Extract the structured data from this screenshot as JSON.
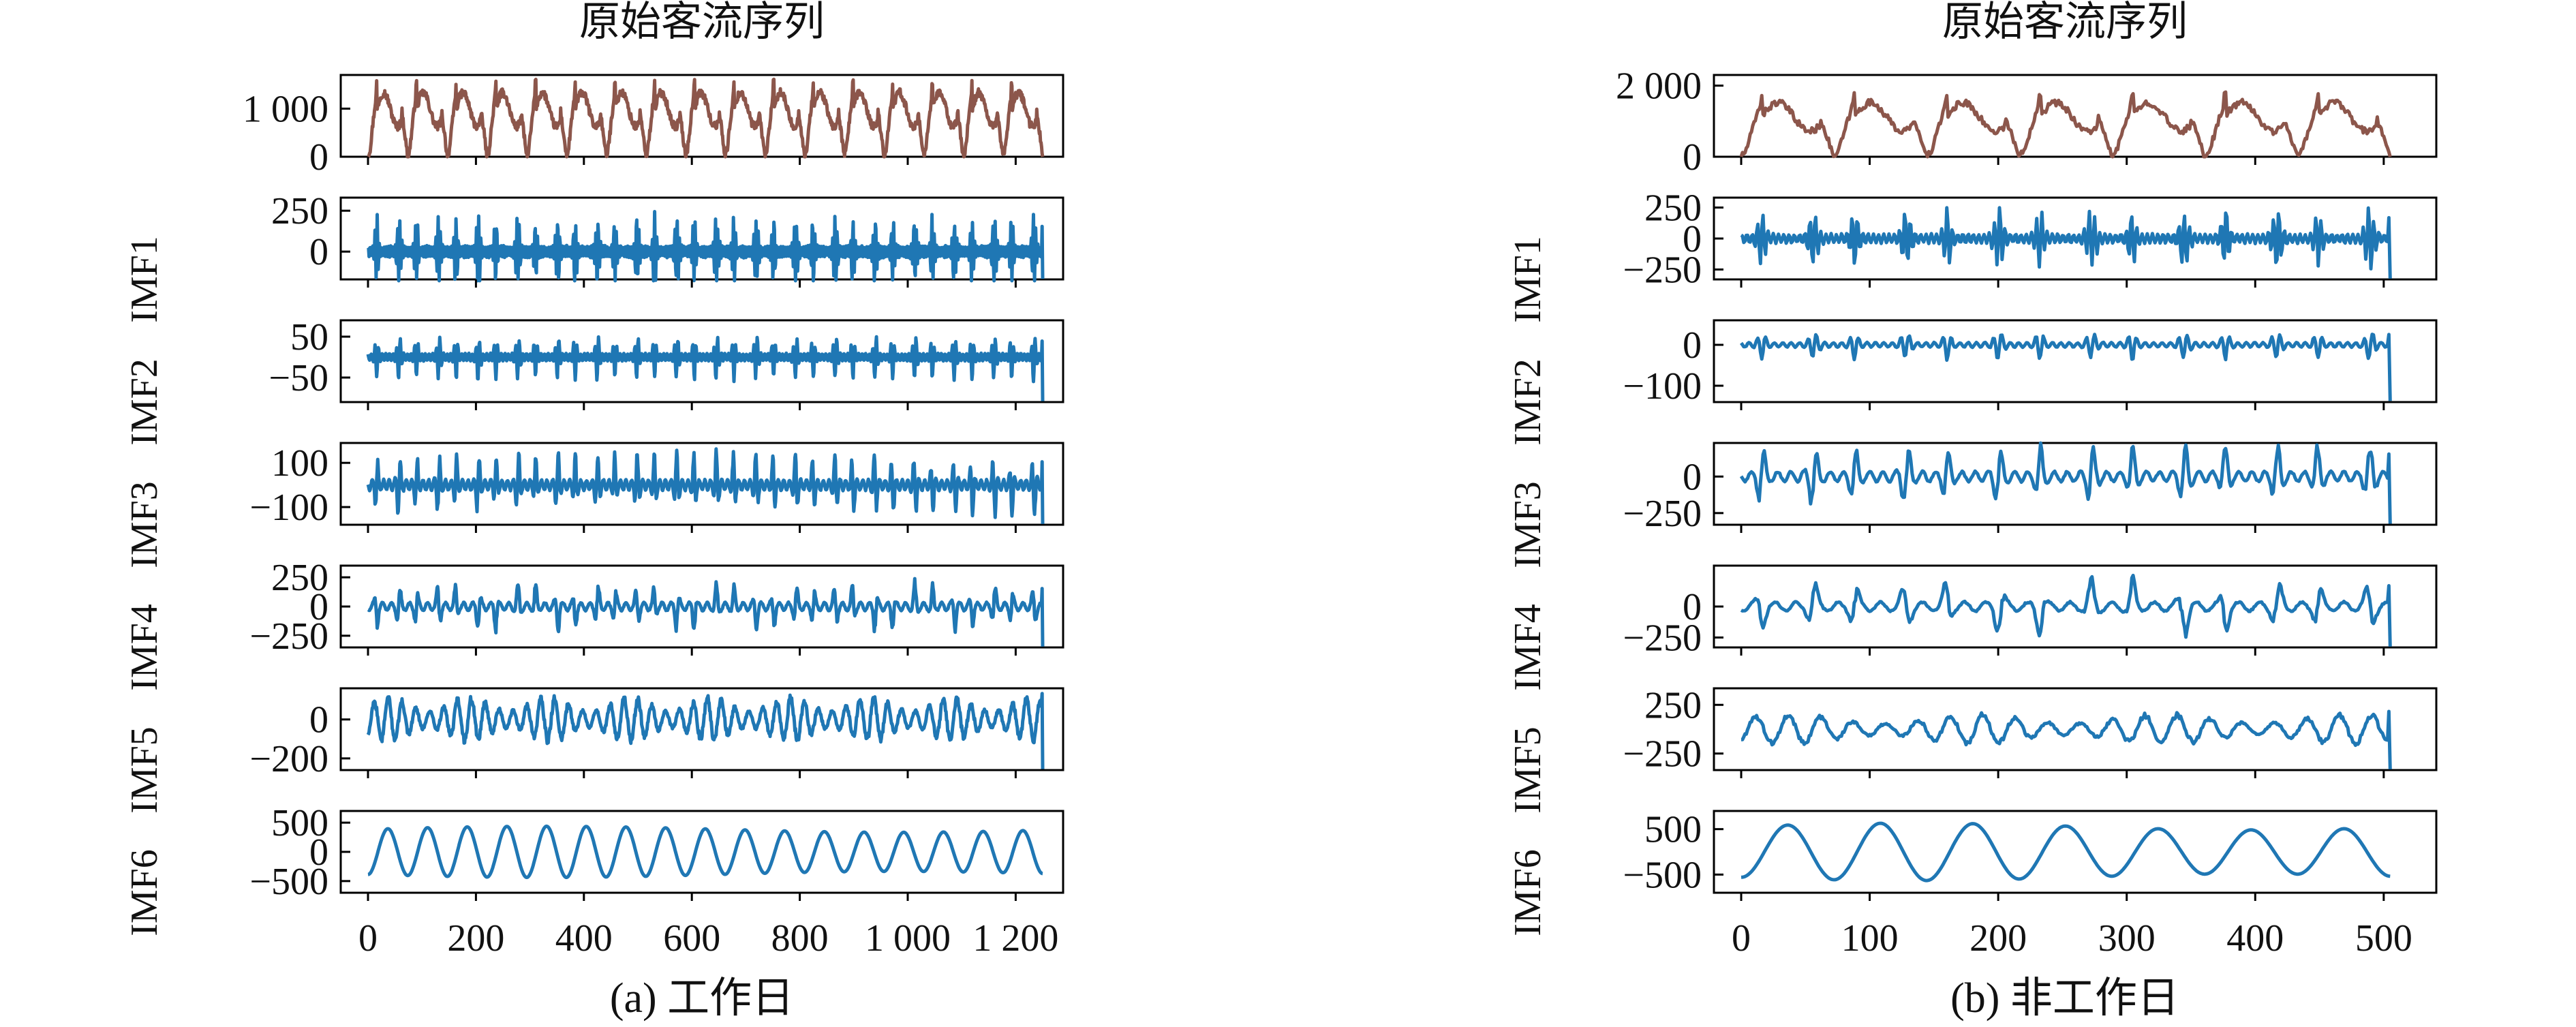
{
  "figure": {
    "colors": {
      "original": "#8c564b",
      "imf": "#1f77b4"
    }
  },
  "chart_data": [
    {
      "type": "line",
      "caption": "(a) 工作日",
      "title": "原始客流序列",
      "xlim": [
        0,
        1250
      ],
      "x_ticks": [
        "0",
        "200",
        "400",
        "600",
        "800",
        "1 000",
        "1 200"
      ],
      "grid": false,
      "cycles": 17,
      "length": 1250,
      "series": [
        {
          "name": "原始客流序列",
          "ylabel": "",
          "color": "#8c564b",
          "ylim": [
            0,
            1700
          ],
          "yticks": [
            [
              "1 000",
              1000
            ],
            [
              "0",
              0
            ]
          ],
          "peak": 1400
        },
        {
          "name": "IMF1",
          "ylabel": "IMF1",
          "color": "#1f77b4",
          "ylim": [
            -170,
            330
          ],
          "yticks": [
            [
              "250",
              250
            ],
            [
              "0",
              0
            ]
          ],
          "amp": 110
        },
        {
          "name": "IMF2",
          "ylabel": "IMF2",
          "color": "#1f77b4",
          "ylim": [
            -110,
            90
          ],
          "yticks": [
            [
              "50",
              50
            ],
            [
              "−50",
              -50
            ]
          ],
          "amp": 28
        },
        {
          "name": "IMF3",
          "ylabel": "IMF3",
          "color": "#1f77b4",
          "ylim": [
            -180,
            190
          ],
          "yticks": [
            [
              "100",
              100
            ],
            [
              "−100",
              -100
            ]
          ],
          "amp": 75
        },
        {
          "name": "IMF4",
          "ylabel": "IMF4",
          "color": "#1f77b4",
          "ylim": [
            -350,
            350
          ],
          "yticks": [
            [
              "250",
              250
            ],
            [
              "0",
              0
            ],
            [
              "−250",
              -250
            ]
          ],
          "amp": 110
        },
        {
          "name": "IMF5",
          "ylabel": "IMF5",
          "color": "#1f77b4",
          "ylim": [
            -260,
            160
          ],
          "yticks": [
            [
              "0",
              0
            ],
            [
              "−200",
              -200
            ]
          ],
          "amp": 95
        },
        {
          "name": "IMF6",
          "ylabel": "IMF6",
          "color": "#1f77b4",
          "ylim": [
            -700,
            700
          ],
          "yticks": [
            [
              "500",
              500
            ],
            [
              "0",
              0
            ],
            [
              "−500",
              -500
            ]
          ],
          "amp": 430
        }
      ]
    },
    {
      "type": "line",
      "caption": "(b) 非工作日",
      "title": "原始客流序列",
      "xlim": [
        0,
        525
      ],
      "x_ticks": [
        "0",
        "100",
        "200",
        "300",
        "400",
        "500"
      ],
      "grid": false,
      "cycles": 7,
      "length": 505,
      "series": [
        {
          "name": "原始客流序列",
          "ylabel": "",
          "color": "#8c564b",
          "ylim": [
            0,
            2300
          ],
          "yticks": [
            [
              "2 000",
              2000
            ],
            [
              "0",
              0
            ]
          ],
          "peak": 1600
        },
        {
          "name": "IMF1",
          "ylabel": "IMF1",
          "color": "#1f77b4",
          "ylim": [
            -330,
            330
          ],
          "yticks": [
            [
              "250",
              250
            ],
            [
              "0",
              0
            ],
            [
              "−250",
              -250
            ]
          ],
          "amp": 120
        },
        {
          "name": "IMF2",
          "ylabel": "IMF2",
          "color": "#1f77b4",
          "ylim": [
            -140,
            60
          ],
          "yticks": [
            [
              "0",
              0
            ],
            [
              "−100",
              -100
            ]
          ],
          "amp": 18
        },
        {
          "name": "IMF3",
          "ylabel": "IMF3",
          "color": "#1f77b4",
          "ylim": [
            -330,
            230
          ],
          "yticks": [
            [
              "0",
              0
            ],
            [
              "−250",
              -250
            ]
          ],
          "amp": 110
        },
        {
          "name": "IMF4",
          "ylabel": "IMF4",
          "color": "#1f77b4",
          "ylim": [
            -330,
            330
          ],
          "yticks": [
            [
              "0",
              0
            ],
            [
              "−250",
              -250
            ]
          ],
          "amp": 120
        },
        {
          "name": "IMF5",
          "ylabel": "IMF5",
          "color": "#1f77b4",
          "ylim": [
            -420,
            420
          ],
          "yticks": [
            [
              "250",
              250
            ],
            [
              "−250",
              -250
            ]
          ],
          "amp": 130
        },
        {
          "name": "IMF6",
          "ylabel": "IMF6",
          "color": "#1f77b4",
          "ylim": [
            -900,
            900
          ],
          "yticks": [
            [
              "500",
              500
            ],
            [
              "−500",
              -500
            ]
          ],
          "amp": 620
        }
      ]
    }
  ]
}
